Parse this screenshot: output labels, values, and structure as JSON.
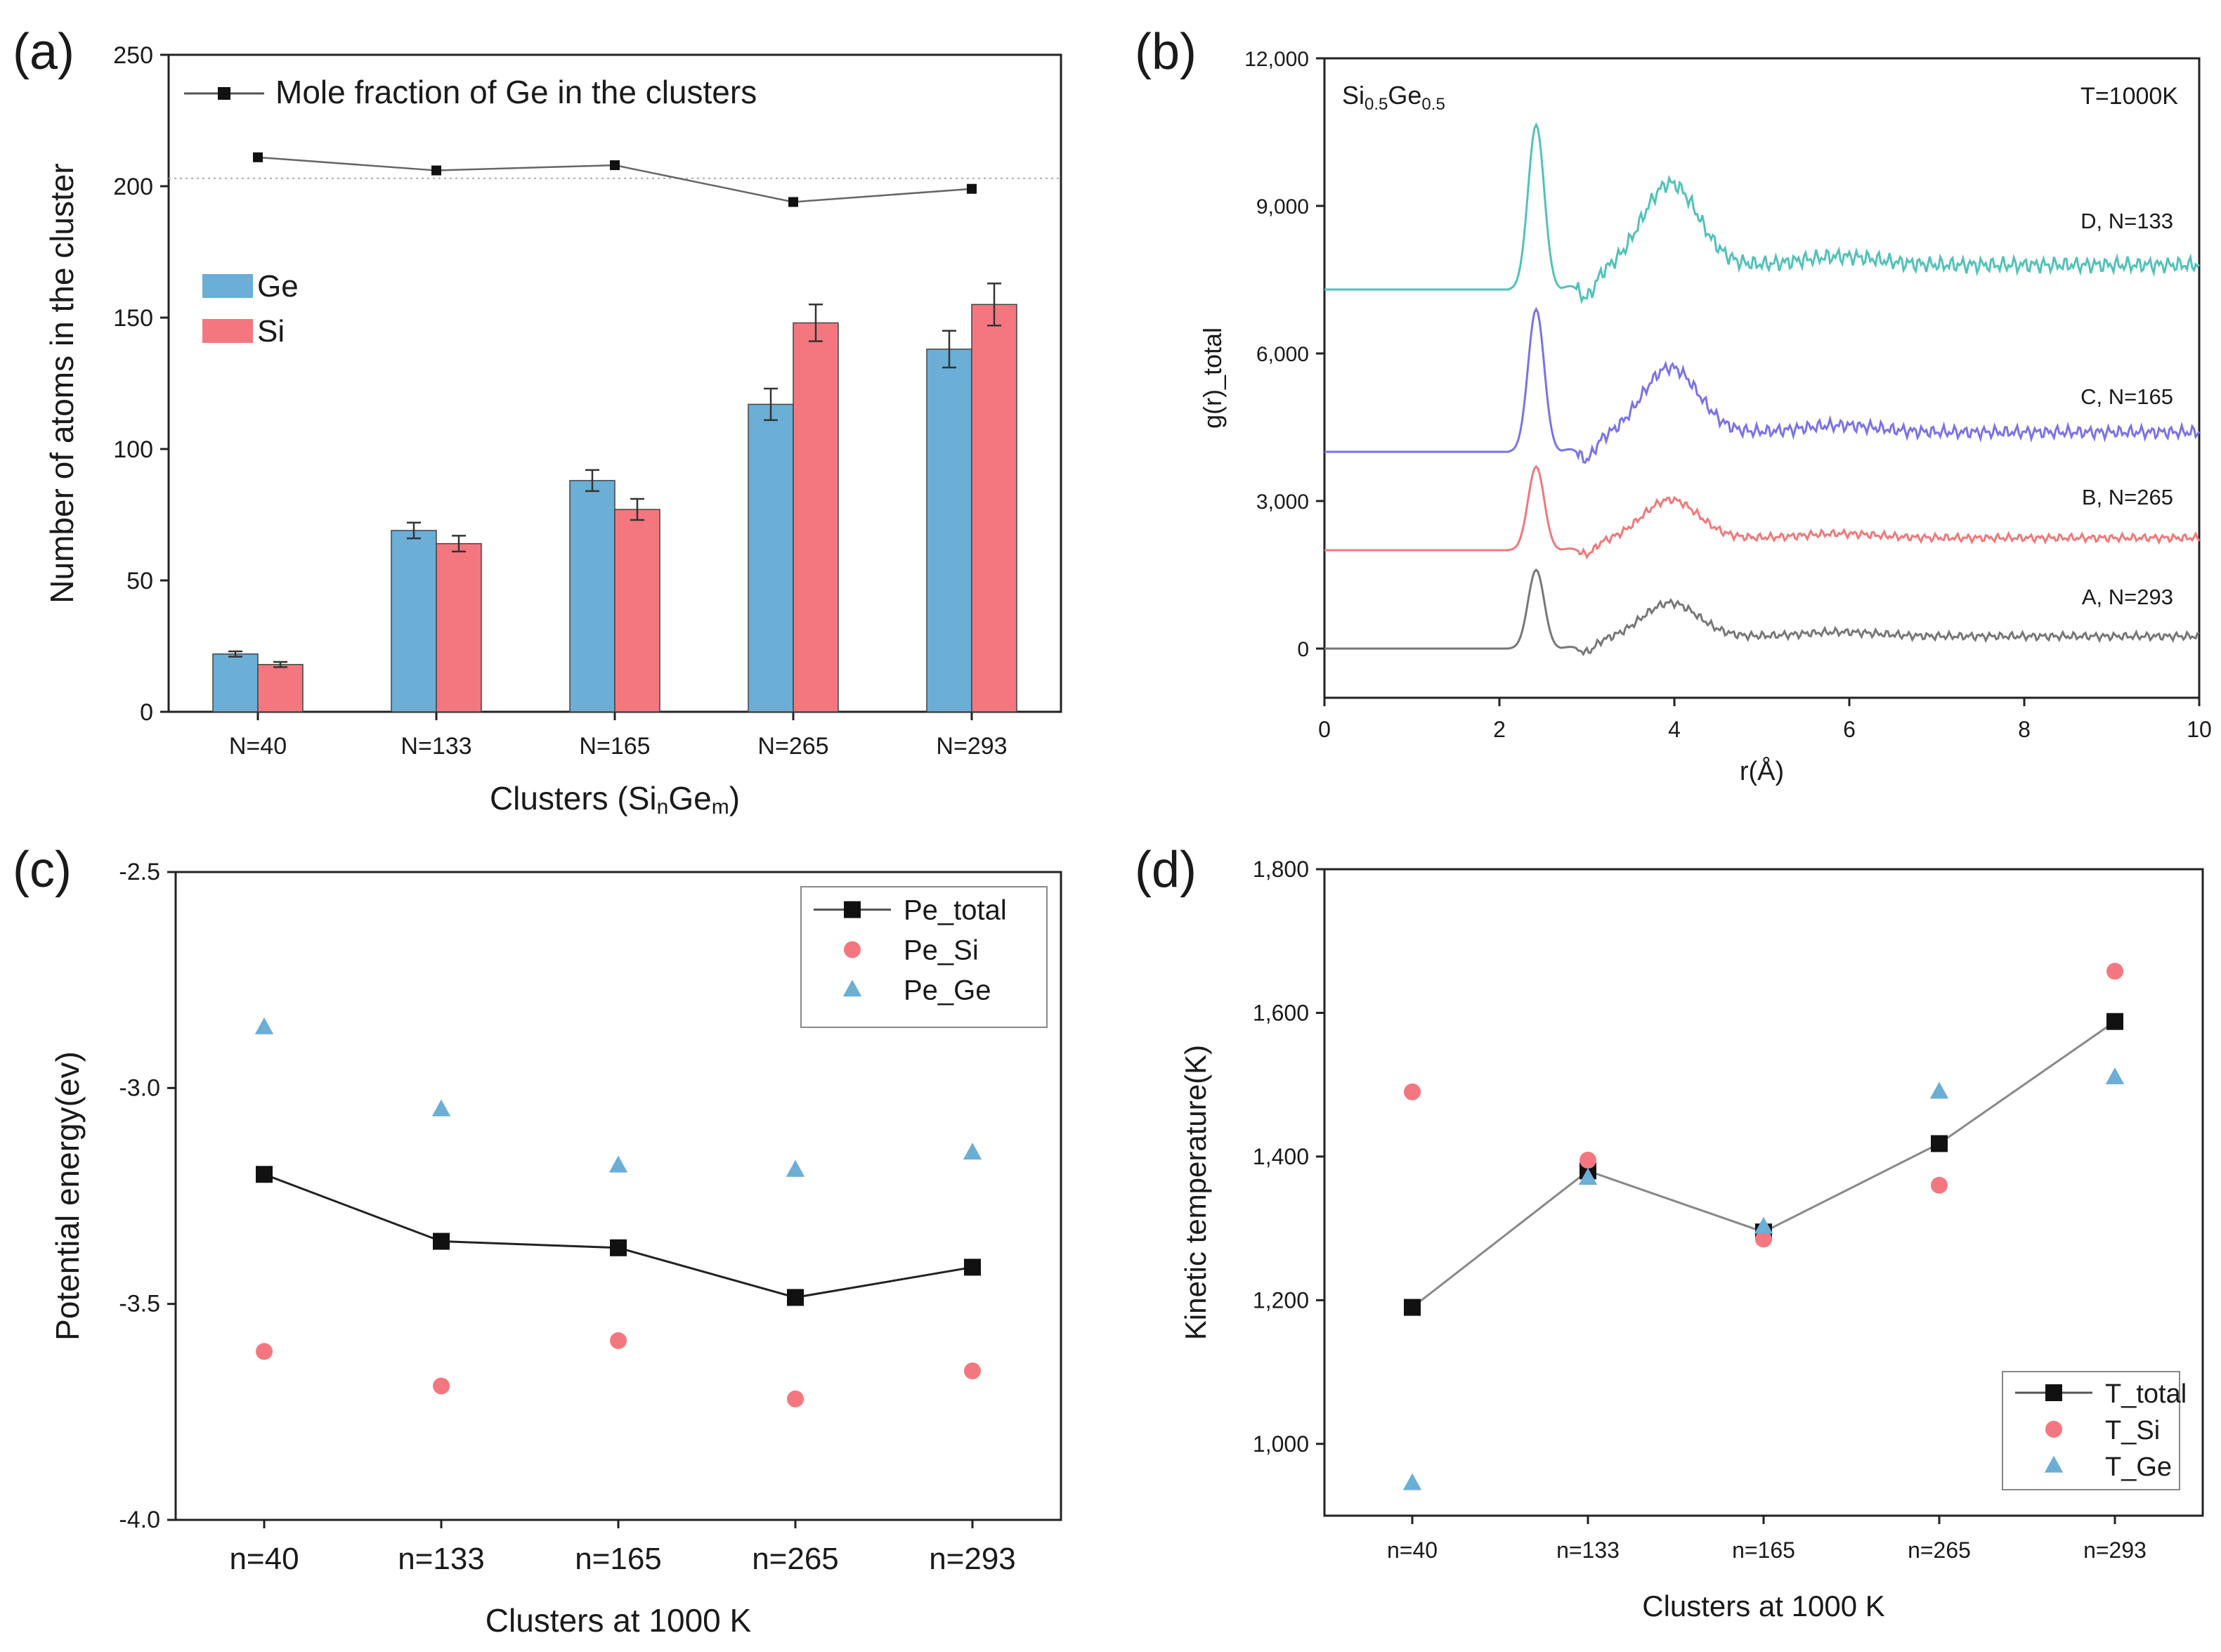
{
  "chart_data": [
    {
      "panel": "(a)",
      "type": "bar",
      "xlabel_parts": {
        "a": "Clusters (Si",
        "b": "n",
        "c": "Ge",
        "d": "m",
        "e": ")"
      },
      "ylabel": "Number of atoms in the cluster",
      "ylim": [
        0,
        250
      ],
      "yticks": [
        "0",
        "50",
        "100",
        "150",
        "200",
        "250"
      ],
      "categories": [
        "N=40",
        "N=133",
        "N=165",
        "N=265",
        "N=293"
      ],
      "series": [
        {
          "name": "Ge",
          "color": "#6baed6",
          "values": [
            22,
            69,
            88,
            117,
            138
          ],
          "errors": [
            1,
            3,
            4,
            6,
            7
          ]
        },
        {
          "name": "Si",
          "color": "#f4777f",
          "values": [
            18,
            64,
            77,
            148,
            155
          ],
          "errors": [
            1,
            3,
            4,
            7,
            8
          ]
        }
      ],
      "line_series": {
        "name": "Mole fraction of Ge in the clusters",
        "values": [
          211,
          206,
          208,
          194,
          199
        ]
      },
      "reference_line": 203
    },
    {
      "panel": "(b)",
      "type": "line",
      "xlabel": "r(Å)",
      "ylabel": "g(r)_total",
      "xlim": [
        0,
        10
      ],
      "ylim": [
        -1000,
        12000
      ],
      "xticks": [
        "0",
        "2",
        "4",
        "6",
        "8",
        "10"
      ],
      "yticks": [
        "0",
        "3,000",
        "6,000",
        "9,000",
        "12,000"
      ],
      "title_parts": {
        "a": "Si",
        "b": "0.5",
        "c": "Ge",
        "d": "0.5"
      },
      "annotation": "T=1000K",
      "series": [
        {
          "name": "A, N=293",
          "color": "#777777",
          "offset": 0,
          "h1": 1600,
          "h2": 700,
          "tail": 250
        },
        {
          "name": "B, N=265",
          "color": "#f0787a",
          "offset": 2000,
          "h1": 1700,
          "h2": 800,
          "tail": 250
        },
        {
          "name": "C, N=165",
          "color": "#7b72e8",
          "offset": 4000,
          "h1": 2900,
          "h2": 1350,
          "tail": 400
        },
        {
          "name": "D, N=133",
          "color": "#52c2b8",
          "offset": 7300,
          "h1": 3350,
          "h2": 1700,
          "tail": 500
        }
      ]
    },
    {
      "panel": "(c)",
      "type": "scatter",
      "xlabel": "Clusters at 1000 K",
      "ylabel": "Potential energy(ev)",
      "ylim": [
        -4.0,
        -2.5
      ],
      "yticks": [
        "-4.0",
        "-3.5",
        "-3.0",
        "-2.5"
      ],
      "categories": [
        "n=40",
        "n=133",
        "n=165",
        "n=265",
        "n=293"
      ],
      "series": [
        {
          "name": "Pe_total",
          "marker": "square",
          "color": "#111111",
          "line": true,
          "values": [
            -3.2,
            -3.355,
            -3.37,
            -3.485,
            -3.415
          ]
        },
        {
          "name": "Pe_Si",
          "marker": "circle",
          "color": "#f4777f",
          "line": false,
          "values": [
            -3.61,
            -3.69,
            -3.585,
            -3.72,
            -3.655
          ]
        },
        {
          "name": "Pe_Ge",
          "marker": "triangle",
          "color": "#6baed6",
          "line": false,
          "values": [
            -2.86,
            -3.05,
            -3.18,
            -3.19,
            -3.15
          ]
        }
      ]
    },
    {
      "panel": "(d)",
      "type": "scatter",
      "xlabel": "Clusters at 1000 K",
      "ylabel": "Kinetic temperature(K)",
      "ylim": [
        900,
        1800
      ],
      "yticks": [
        "1,000",
        "1,200",
        "1,400",
        "1,600",
        "1,800"
      ],
      "ytick_values": [
        1000,
        1200,
        1400,
        1600,
        1800
      ],
      "categories": [
        "n=40",
        "n=133",
        "n=165",
        "n=265",
        "n=293"
      ],
      "series": [
        {
          "name": "T_total",
          "marker": "square",
          "color": "#111111",
          "line": true,
          "values": [
            1190,
            1380,
            1295,
            1418,
            1588
          ]
        },
        {
          "name": "T_Si",
          "marker": "circle",
          "color": "#f4777f",
          "line": false,
          "values": [
            1490,
            1395,
            1285,
            1360,
            1658
          ]
        },
        {
          "name": "T_Ge",
          "marker": "triangle",
          "color": "#6baed6",
          "line": false,
          "values": [
            945,
            1370,
            1302,
            1490,
            1510
          ]
        }
      ]
    }
  ]
}
